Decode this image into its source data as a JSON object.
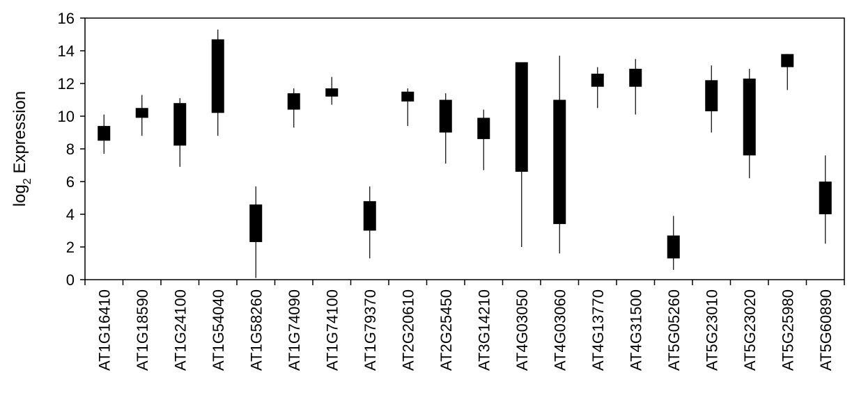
{
  "chart_data": {
    "type": "candlestick",
    "ylabel": "log2 Expression",
    "ylabel_base": "log",
    "ylabel_sub": "2",
    "ylabel_rest": " Expression",
    "ylim": [
      0,
      16
    ],
    "yticks": [
      0,
      2,
      4,
      6,
      8,
      10,
      12,
      14,
      16
    ],
    "grid": false,
    "categories": [
      "AT1G16410",
      "AT1G18590",
      "AT1G24100",
      "AT1G54040",
      "AT1G58260",
      "AT1G74090",
      "AT1G74100",
      "AT1G79370",
      "AT2G20610",
      "AT2G25450",
      "AT3G14210",
      "AT4G03050",
      "AT4G03060",
      "AT4G13770",
      "AT4G31500",
      "AT5G05260",
      "AT5G23010",
      "AT5G23020",
      "AT5G25980",
      "AT5G60890"
    ],
    "series": [
      {
        "box_low": [
          8.5,
          9.9,
          8.2,
          10.2,
          2.3,
          10.4,
          11.2,
          3.0,
          10.9,
          9.0,
          8.6,
          6.6,
          3.4,
          11.8,
          11.8,
          1.3,
          10.3,
          7.6,
          13.0,
          4.0
        ],
        "box_high": [
          9.4,
          10.5,
          10.8,
          14.7,
          4.6,
          11.4,
          11.7,
          4.8,
          11.5,
          11.0,
          9.9,
          13.3,
          11.0,
          12.6,
          12.9,
          2.7,
          12.2,
          12.3,
          13.8,
          6.0
        ],
        "whisker_low": [
          7.7,
          8.8,
          6.9,
          8.8,
          0.1,
          9.3,
          10.7,
          1.3,
          9.4,
          7.1,
          6.7,
          2.0,
          1.6,
          10.5,
          10.1,
          0.6,
          9.0,
          6.2,
          11.6,
          2.2
        ],
        "whisker_high": [
          10.1,
          11.3,
          11.1,
          15.3,
          5.7,
          11.7,
          12.4,
          5.7,
          11.7,
          11.4,
          10.4,
          13.3,
          13.7,
          13.0,
          13.5,
          3.9,
          13.1,
          12.9,
          13.8,
          7.6
        ]
      }
    ]
  }
}
